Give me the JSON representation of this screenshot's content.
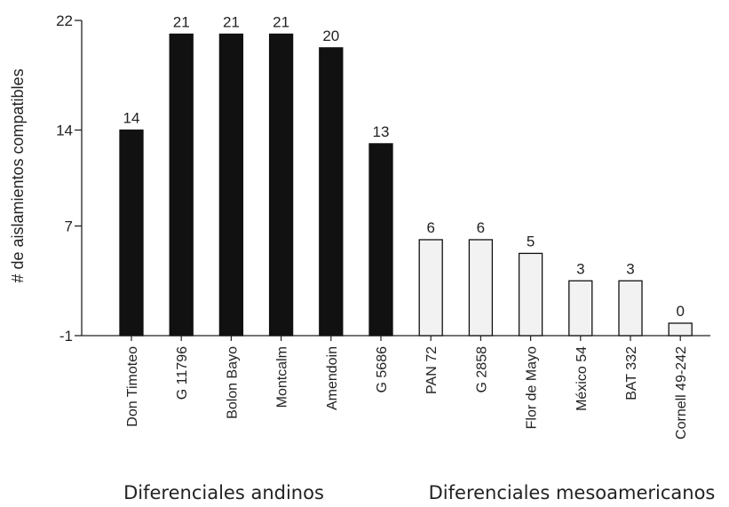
{
  "chart_data": {
    "type": "bar",
    "title": "",
    "xlabel": "",
    "ylabel": "# de aislamientos compatibles",
    "ylim": [
      -1,
      22
    ],
    "yticks": [
      -1,
      7,
      14,
      22
    ],
    "categories": [
      "Don Timoteo",
      "G 11796",
      "Bolon Bayo",
      "Montcalm",
      "Amendoin",
      "G 5686",
      "PAN 72",
      "G 2858",
      "Flor de Mayo",
      "México 54",
      "BAT 332",
      "Cornell 49-242"
    ],
    "values": [
      14,
      21,
      21,
      21,
      20,
      13,
      6,
      6,
      5,
      3,
      3,
      0
    ],
    "value_labels": [
      "14",
      "21",
      "21",
      "21",
      "20",
      "13",
      "6",
      "6",
      "5",
      "3",
      "3",
      "0"
    ],
    "bar_groups": [
      "andino",
      "andino",
      "andino",
      "andino",
      "andino",
      "andino",
      "mesoamericano",
      "mesoamericano",
      "mesoamericano",
      "mesoamericano",
      "mesoamericano",
      "mesoamericano"
    ],
    "group_labels": [
      "Diferenciales andinos",
      "Diferenciales mesoamericanos"
    ],
    "colors": {
      "andino": "#111111",
      "mesoamericano": "#f2f2f2",
      "axis": "#222222",
      "bar_edge": "#111111"
    },
    "grid": false
  }
}
